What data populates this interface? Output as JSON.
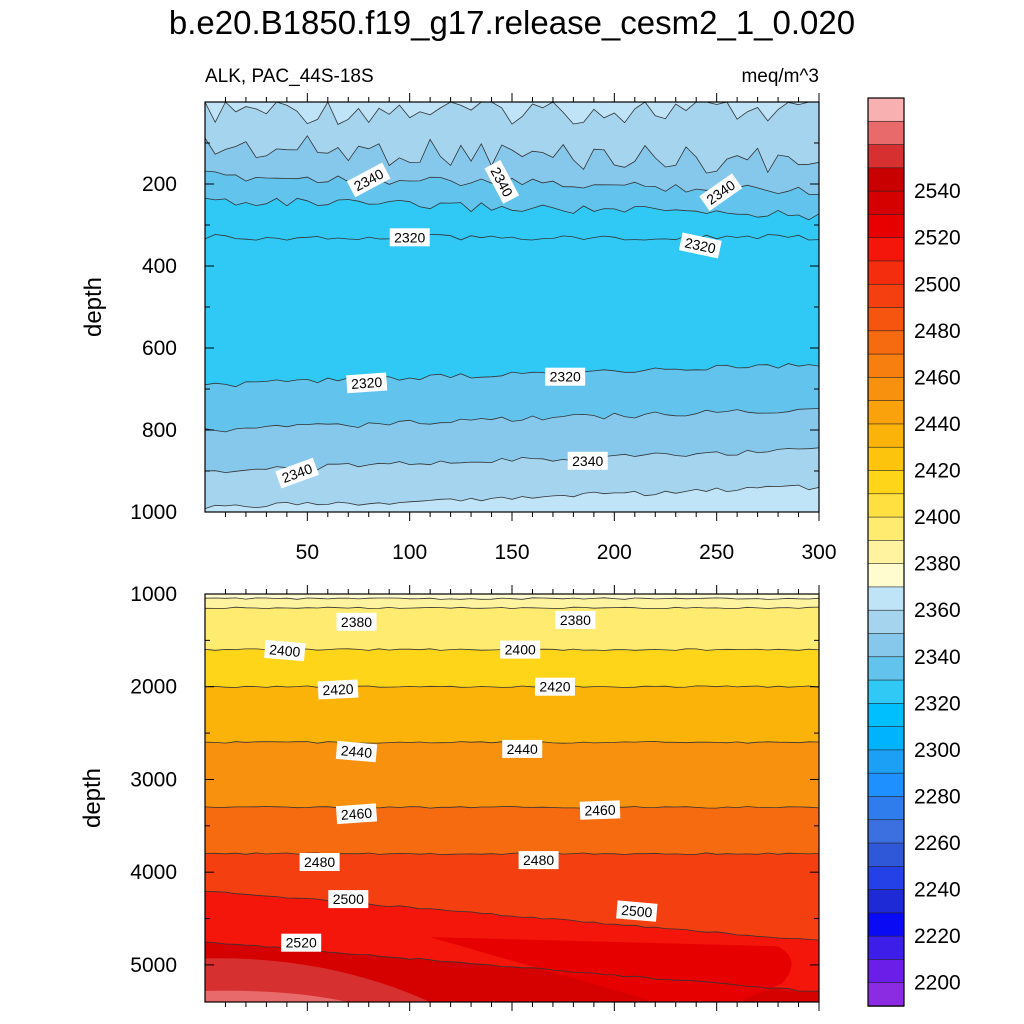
{
  "title": "b.e20.B1850.f19_g17.release_cesm2_1_0.020",
  "subtitle_left": "ALK, PAC_44S-18S",
  "subtitle_right": "meq/m^3",
  "chart_data": {
    "type": "heatmap",
    "variable": "ALK",
    "units": "meq/m^3",
    "x_range": [
      0,
      300
    ],
    "x_ticks": [
      50,
      100,
      150,
      200,
      250,
      300
    ],
    "colorbar": {
      "levels": [
        2190,
        2200,
        2210,
        2220,
        2230,
        2240,
        2250,
        2260,
        2270,
        2280,
        2290,
        2300,
        2310,
        2320,
        2330,
        2340,
        2350,
        2360,
        2370,
        2380,
        2390,
        2400,
        2410,
        2420,
        2430,
        2440,
        2450,
        2460,
        2470,
        2480,
        2490,
        2500,
        2510,
        2520,
        2530,
        2540,
        2550,
        2560
      ],
      "colors": [
        "#8b2be2",
        "#6a1ee8",
        "#3c1ee8",
        "#0a0af5",
        "#1e2ad6",
        "#2341e6",
        "#2e58d8",
        "#3c6fe0",
        "#2f7ded",
        "#1e90ff",
        "#1ba0f5",
        "#00b3ff",
        "#00bfff",
        "#30c8f5",
        "#62c3ec",
        "#86c8eb",
        "#a5d4ef",
        "#bfe3f7",
        "#fffcd0",
        "#fff3a0",
        "#ffeb70",
        "#ffe040",
        "#ffd51a",
        "#fdc40d",
        "#fbb30a",
        "#f9a20b",
        "#f8910d",
        "#f77f10",
        "#f66a10",
        "#f65510",
        "#f44010",
        "#f52d0f",
        "#f4150b",
        "#e60000",
        "#d50000",
        "#c90000",
        "#d63030",
        "#e86a6a",
        "#f8b0b0"
      ],
      "tick_labels": [
        "2200",
        "2220",
        "2240",
        "2260",
        "2280",
        "2300",
        "2320",
        "2340",
        "2360",
        "2380",
        "2400",
        "2420",
        "2440",
        "2460",
        "2480",
        "2500",
        "2520",
        "2540"
      ]
    },
    "panels": [
      {
        "name": "upper",
        "ylabel": "depth",
        "ylim": [
          1000,
          0
        ],
        "y_ticks": [
          200,
          400,
          600,
          800,
          1000
        ],
        "x_tick_labels_shown": true,
        "contours": [
          {
            "depth": 20,
            "value": 2355
          },
          {
            "depth": 110,
            "value": 2350
          },
          {
            "depth": 180,
            "value": 2340
          },
          {
            "depth": 240,
            "value": 2330
          },
          {
            "depth": 330,
            "value": 2320
          },
          {
            "depth": 690,
            "value": 2320
          },
          {
            "depth": 800,
            "value": 2330
          },
          {
            "depth": 900,
            "value": 2340
          },
          {
            "depth": 990,
            "value": 2350
          }
        ],
        "labels": [
          {
            "text": "2340",
            "x": 80,
            "depth": 190,
            "angle": -28
          },
          {
            "text": "2340",
            "x": 145,
            "depth": 195,
            "angle": 62
          },
          {
            "text": "2340",
            "x": 252,
            "depth": 220,
            "angle": -35
          },
          {
            "text": "2320",
            "x": 100,
            "depth": 330,
            "angle": 0
          },
          {
            "text": "2320",
            "x": 242,
            "depth": 350,
            "angle": 12
          },
          {
            "text": "2320",
            "x": 79,
            "depth": 685,
            "angle": -4
          },
          {
            "text": "2320",
            "x": 176,
            "depth": 670,
            "angle": 0
          },
          {
            "text": "2340",
            "x": 45,
            "depth": 905,
            "angle": -20
          },
          {
            "text": "2340",
            "x": 187,
            "depth": 875,
            "angle": 0
          }
        ]
      },
      {
        "name": "lower",
        "ylabel": "depth",
        "ylim": [
          5400,
          1000
        ],
        "y_ticks": [
          1000,
          2000,
          3000,
          4000,
          5000
        ],
        "x_tick_labels_shown": false,
        "contours": [
          {
            "depth": 1050,
            "value": 2370
          },
          {
            "depth": 1150,
            "value": 2380
          },
          {
            "depth": 1600,
            "value": 2400
          },
          {
            "depth": 2000,
            "value": 2420
          },
          {
            "depth": 2600,
            "value": 2440
          },
          {
            "depth": 3300,
            "value": 2460
          },
          {
            "depth": 3800,
            "value": 2480
          },
          {
            "depth": 4200,
            "value": 2500
          },
          {
            "depth": 4750,
            "value": 2520
          }
        ],
        "labels": [
          {
            "text": "2380",
            "x": 74,
            "depth": 1300,
            "angle": 0
          },
          {
            "text": "2380",
            "x": 181,
            "depth": 1280,
            "angle": 0
          },
          {
            "text": "2400",
            "x": 39,
            "depth": 1610,
            "angle": 5
          },
          {
            "text": "2400",
            "x": 154,
            "depth": 1600,
            "angle": 0
          },
          {
            "text": "2420",
            "x": 65,
            "depth": 2030,
            "angle": -3
          },
          {
            "text": "2420",
            "x": 171,
            "depth": 2000,
            "angle": 0
          },
          {
            "text": "2440",
            "x": 74,
            "depth": 2700,
            "angle": 5
          },
          {
            "text": "2440",
            "x": 155,
            "depth": 2670,
            "angle": 0
          },
          {
            "text": "2460",
            "x": 74,
            "depth": 3370,
            "angle": -4
          },
          {
            "text": "2460",
            "x": 193,
            "depth": 3330,
            "angle": -2
          },
          {
            "text": "2480",
            "x": 56,
            "depth": 3890,
            "angle": 0
          },
          {
            "text": "2480",
            "x": 163,
            "depth": 3870,
            "angle": 0
          },
          {
            "text": "2500",
            "x": 70,
            "depth": 4290,
            "angle": 0
          },
          {
            "text": "2500",
            "x": 211,
            "depth": 4420,
            "angle": 5
          },
          {
            "text": "2520",
            "x": 47,
            "depth": 4760,
            "angle": 0
          }
        ]
      }
    ]
  }
}
